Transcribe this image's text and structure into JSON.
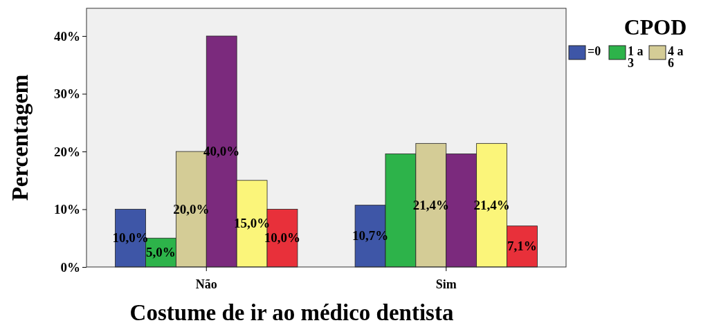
{
  "chart_data": {
    "type": "bar",
    "xlabel": "Costume de ir ao médico dentista",
    "ylabel": "Percentagem",
    "legend_title": "CPOD",
    "categories": [
      "Não",
      "Sim"
    ],
    "ylim": [
      0,
      44.8
    ],
    "yticks": [
      {
        "value": 0,
        "label": "0%"
      },
      {
        "value": 10,
        "label": "10%"
      },
      {
        "value": 20,
        "label": "20%"
      },
      {
        "value": 30,
        "label": "30%"
      },
      {
        "value": 40,
        "label": "40%"
      }
    ],
    "series": [
      {
        "name": "=0",
        "color": "#3e56a7",
        "values": [
          10.0,
          10.7
        ],
        "value_labels": [
          "10,0%",
          "10,7%"
        ]
      },
      {
        "name": "1 a 3",
        "color": "#2db34a",
        "values": [
          5.0,
          19.6
        ],
        "value_labels": [
          "5,0%",
          null
        ]
      },
      {
        "name": "4 a 6",
        "color": "#d4cc96",
        "values": [
          20.0,
          21.4
        ],
        "value_labels": [
          "20,0%",
          "21,4%"
        ]
      },
      {
        "color": "#7b2a7d",
        "values": [
          40.0,
          19.6
        ],
        "value_labels": [
          "40,0%",
          null
        ]
      },
      {
        "color": "#fbf57a",
        "values": [
          15.0,
          21.4
        ],
        "value_labels": [
          "15,0%",
          "21,4%"
        ]
      },
      {
        "color": "#e8303a",
        "values": [
          10.0,
          7.1
        ],
        "value_labels": [
          "10,0%",
          "7,1%"
        ]
      }
    ],
    "grid": false,
    "legend": "top right"
  }
}
